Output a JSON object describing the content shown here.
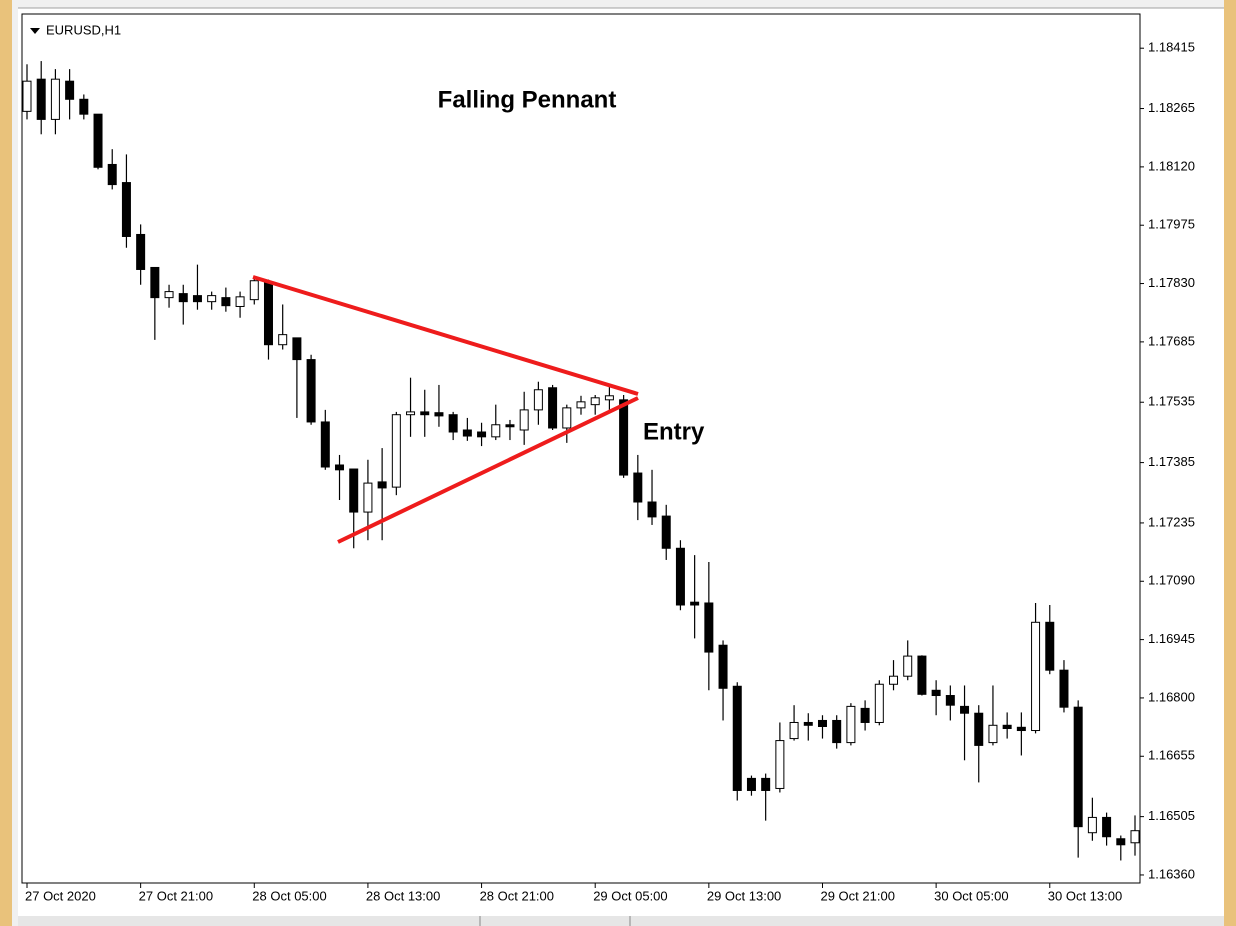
{
  "chart_data": {
    "type": "candlestick",
    "title": "EURUSD,H1",
    "annotations": [
      "Falling Pennant",
      "Entry"
    ],
    "up_color": "#ffffff",
    "down_color": "#000000",
    "outline_color": "#000000",
    "trendline_color": "#ee1c1c",
    "grid": false,
    "categories": [
      "27 Oct 2020",
      null,
      null,
      null,
      null,
      null,
      null,
      null,
      "27 Oct 21:00",
      null,
      null,
      null,
      null,
      null,
      null,
      null,
      "28 Oct 05:00",
      null,
      null,
      null,
      null,
      null,
      null,
      null,
      "28 Oct 13:00",
      null,
      null,
      null,
      null,
      null,
      null,
      null,
      "28 Oct 21:00",
      null,
      null,
      null,
      null,
      null,
      null,
      null,
      "29 Oct 05:00",
      null,
      null,
      null,
      null,
      null,
      null,
      null,
      "29 Oct 13:00",
      null,
      null,
      null,
      null,
      null,
      null,
      null,
      "29 Oct 21:00",
      null,
      null,
      null,
      null,
      null,
      null,
      null,
      "30 Oct 05:00",
      null,
      null,
      null,
      null,
      null,
      null,
      null,
      "30 Oct 13:00",
      null,
      null,
      null,
      null,
      null,
      null
    ],
    "open": [
      1.18258,
      1.18338,
      1.18238,
      1.18333,
      1.18288,
      1.18251,
      1.18126,
      1.18081,
      1.17952,
      1.1787,
      1.17795,
      1.17805,
      1.178,
      1.17785,
      1.17795,
      1.17773,
      1.1779,
      1.17835,
      1.17678,
      1.17695,
      1.17641,
      1.17486,
      1.17379,
      1.17369,
      1.17262,
      1.17337,
      1.17324,
      1.17504,
      1.17511,
      1.17509,
      1.17504,
      1.17466,
      1.17461,
      1.17449,
      1.17479,
      1.17466,
      1.17516,
      1.17571,
      1.17471,
      1.17521,
      1.17529,
      1.17541,
      1.17541,
      1.17359,
      1.17287,
      1.17252,
      1.17172,
      1.17038,
      1.17036,
      1.16931,
      1.16829,
      1.166,
      1.166,
      1.16575,
      1.16699,
      1.16739,
      1.16744,
      1.16744,
      1.16689,
      1.16774,
      1.16739,
      1.16834,
      1.16854,
      1.16904,
      1.16819,
      1.16806,
      1.16779,
      1.16762,
      1.16689,
      1.16732,
      1.16727,
      1.16719,
      1.16988,
      1.16869,
      1.16777,
      1.16465,
      1.16503,
      1.1645,
      1.1644
    ],
    "high": [
      1.18375,
      1.18383,
      1.18363,
      1.18363,
      1.183,
      1.18251,
      1.18164,
      1.18151,
      1.17977,
      1.1787,
      1.17827,
      1.17827,
      1.17877,
      1.1781,
      1.1782,
      1.1781,
      1.1785,
      1.1784,
      1.17778,
      1.17695,
      1.17653,
      1.17516,
      1.17404,
      1.17369,
      1.17392,
      1.17421,
      1.17511,
      1.17596,
      1.17566,
      1.17578,
      1.17511,
      1.17496,
      1.17484,
      1.17529,
      1.17491,
      1.17561,
      1.17586,
      1.17578,
      1.17529,
      1.17551,
      1.17553,
      1.17578,
      1.17553,
      1.17404,
      1.17367,
      1.1728,
      1.17192,
      1.17155,
      1.17138,
      1.16943,
      1.16839,
      1.16607,
      1.16612,
      1.16739,
      1.16782,
      1.16762,
      1.16757,
      1.16757,
      1.16787,
      1.16794,
      1.16844,
      1.16894,
      1.16943,
      1.16906,
      1.16844,
      1.16831,
      1.16831,
      1.16782,
      1.16831,
      1.16764,
      1.16764,
      1.17036,
      1.17031,
      1.16894,
      1.16794,
      1.16552,
      1.16515,
      1.16458,
      1.16508
    ],
    "low": [
      1.18238,
      1.18201,
      1.18201,
      1.18238,
      1.18238,
      1.18114,
      1.18064,
      1.17919,
      1.17827,
      1.1769,
      1.1777,
      1.17728,
      1.17765,
      1.17765,
      1.1776,
      1.17745,
      1.17778,
      1.17641,
      1.17666,
      1.17496,
      1.17479,
      1.17367,
      1.17292,
      1.17172,
      1.17192,
      1.17192,
      1.17304,
      1.17449,
      1.17449,
      1.17474,
      1.17441,
      1.17439,
      1.17426,
      1.17441,
      1.17441,
      1.17429,
      1.17479,
      1.17466,
      1.17434,
      1.17504,
      1.17504,
      1.17516,
      1.17347,
      1.17242,
      1.1723,
      1.17143,
      1.17018,
      1.16948,
      1.16819,
      1.16744,
      1.16545,
      1.16557,
      1.16495,
      1.16565,
      1.16694,
      1.16694,
      1.16699,
      1.16674,
      1.16682,
      1.16719,
      1.16732,
      1.16819,
      1.16844,
      1.16806,
      1.16757,
      1.16744,
      1.16645,
      1.1659,
      1.16682,
      1.16699,
      1.16657,
      1.16712,
      1.16859,
      1.16764,
      1.16403,
      1.16445,
      1.16433,
      1.16396,
      1.16408
    ],
    "close": [
      1.18333,
      1.18238,
      1.18338,
      1.18288,
      1.18251,
      1.18119,
      1.18076,
      1.17947,
      1.17865,
      1.17795,
      1.1781,
      1.17785,
      1.17785,
      1.178,
      1.17775,
      1.17797,
      1.17837,
      1.17678,
      1.17703,
      1.17641,
      1.17486,
      1.17374,
      1.17367,
      1.17262,
      1.17334,
      1.17322,
      1.17504,
      1.17511,
      1.17504,
      1.17501,
      1.17461,
      1.17451,
      1.17449,
      1.17479,
      1.17474,
      1.17516,
      1.17566,
      1.17471,
      1.17521,
      1.17536,
      1.17546,
      1.17551,
      1.17354,
      1.17287,
      1.1725,
      1.17172,
      1.17031,
      1.17031,
      1.16914,
      1.16824,
      1.1657,
      1.1657,
      1.1657,
      1.16694,
      1.16739,
      1.16732,
      1.16729,
      1.16689,
      1.16779,
      1.16739,
      1.16834,
      1.16854,
      1.16904,
      1.16809,
      1.16806,
      1.16782,
      1.16762,
      1.16682,
      1.16732,
      1.16724,
      1.16719,
      1.16988,
      1.16869,
      1.16777,
      1.1648,
      1.16503,
      1.16455,
      1.16435,
      1.1647
    ],
    "ylim": [
      1.1634,
      1.185
    ],
    "yticks": [
      1.18415,
      1.18265,
      {
        "value": 1.1812,
        "label": "1.18120"
      },
      1.17975,
      {
        "value": 1.1783,
        "label": "1.17830"
      },
      1.17685,
      1.17535,
      1.17385,
      1.17235,
      {
        "value": 1.1709,
        "label": "1.17090"
      },
      1.16945,
      {
        "value": 1.168,
        "label": "1.16800"
      },
      1.16655,
      1.16505,
      {
        "value": 1.1636,
        "label": "1.16360"
      }
    ]
  }
}
